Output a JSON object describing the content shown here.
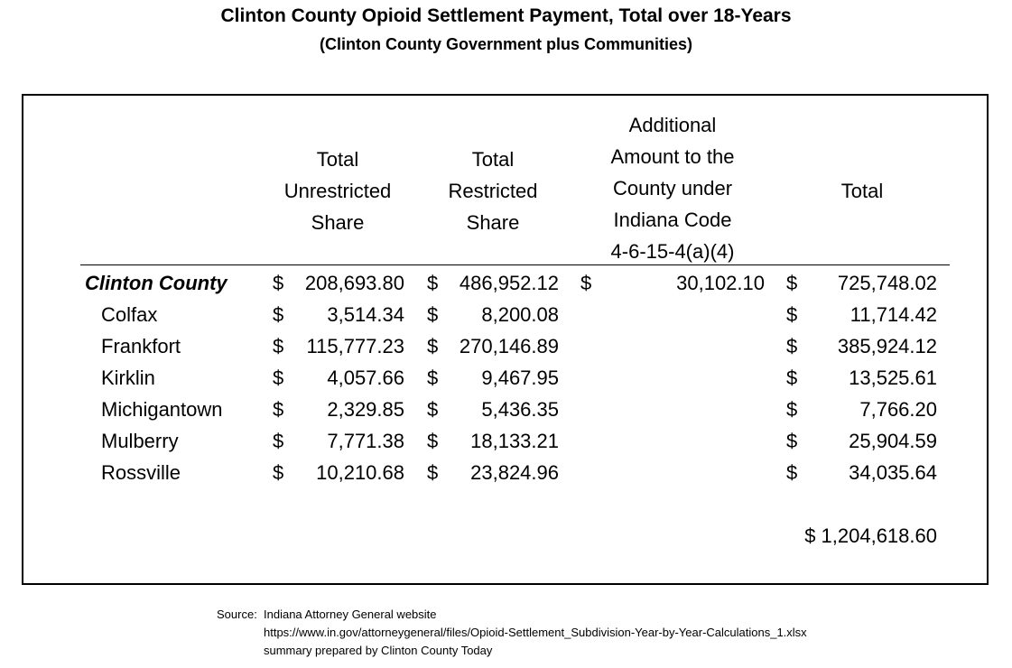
{
  "title": "Clinton County Opioid Settlement Payment, Total over 18-Years",
  "subtitle": "(Clinton County Government plus Communities)",
  "headers": {
    "unrestricted": "Total\nUnrestricted\nShare",
    "restricted": "Total\nRestricted\nShare",
    "additional": "Additional\nAmount to the\nCounty under\nIndiana Code\n4-6-15-4(a)(4)",
    "total": "Total"
  },
  "currency": "$",
  "rows": [
    {
      "name": "Clinton County",
      "unrestricted": "208,693.80",
      "restricted": "486,952.12",
      "additional": "30,102.10",
      "total": "725,748.02"
    },
    {
      "name": "Colfax",
      "unrestricted": "3,514.34",
      "restricted": "8,200.08",
      "additional": "",
      "total": "11,714.42"
    },
    {
      "name": "Frankfort",
      "unrestricted": "115,777.23",
      "restricted": "270,146.89",
      "additional": "",
      "total": "385,924.12"
    },
    {
      "name": "Kirklin",
      "unrestricted": "4,057.66",
      "restricted": "9,467.95",
      "additional": "",
      "total": "13,525.61"
    },
    {
      "name": "Michigantown",
      "unrestricted": "2,329.85",
      "restricted": "5,436.35",
      "additional": "",
      "total": "7,766.20"
    },
    {
      "name": "Mulberry",
      "unrestricted": "7,771.38",
      "restricted": "18,133.21",
      "additional": "",
      "total": "25,904.59"
    },
    {
      "name": "Rossville",
      "unrestricted": "10,210.68",
      "restricted": "23,824.96",
      "additional": "",
      "total": "34,035.64"
    }
  ],
  "grand_total": "$ 1,204,618.60",
  "source": {
    "label": "Source:",
    "line1": "Indiana Attorney General website",
    "line2": "https://www.in.gov/attorneygeneral/files/Opioid-Settlement_Subdivision-Year-by-Year-Calculations_1.xlsx",
    "line3": "summary prepared by Clinton County Today"
  }
}
